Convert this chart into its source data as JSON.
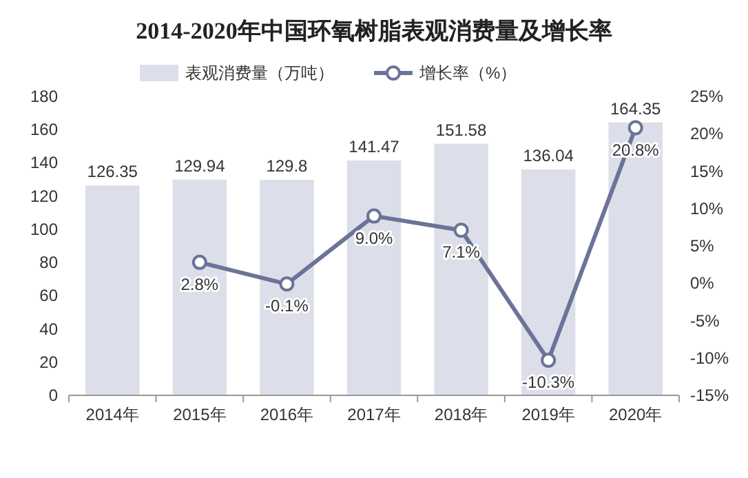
{
  "chart_data": {
    "type": "bar",
    "title": "2014-2020年中国环氧树脂表观消费量及增长率",
    "categories": [
      "2014年",
      "2015年",
      "2016年",
      "2017年",
      "2018年",
      "2019年",
      "2020年"
    ],
    "series": [
      {
        "name": "表观消费量（万吨）",
        "color": "#dcdfe9",
        "values": [
          126.35,
          129.94,
          129.8,
          141.47,
          151.58,
          136.04,
          164.35
        ],
        "data_labels": true
      },
      {
        "name": "增长率（%）",
        "type": "line",
        "axis": "y2",
        "color": "#6b7398",
        "marker": "circle",
        "values": [
          null,
          2.8,
          -0.1,
          9.0,
          7.1,
          -10.3,
          20.8
        ],
        "value_labels": [
          null,
          "2.8%",
          "-0.1%",
          "9.0%",
          "7.1%",
          "-10.3%",
          "20.8%"
        ]
      }
    ],
    "ylim": [
      0,
      180
    ],
    "yticks": [
      0,
      20,
      40,
      60,
      80,
      100,
      120,
      140,
      160,
      180
    ],
    "y2lim": [
      -15,
      25
    ],
    "y2ticks": [
      {
        "value": -15,
        "label": "-15%"
      },
      {
        "value": -10,
        "label": "-10%"
      },
      {
        "value": -5,
        "label": "-5%"
      },
      {
        "value": 0,
        "label": "0%"
      },
      {
        "value": 5,
        "label": "5%"
      },
      {
        "value": 10,
        "label": "10%"
      },
      {
        "value": 15,
        "label": "15%"
      },
      {
        "value": 20,
        "label": "20%"
      },
      {
        "value": 25,
        "label": "25%"
      }
    ],
    "legend": "top",
    "grid": false
  }
}
